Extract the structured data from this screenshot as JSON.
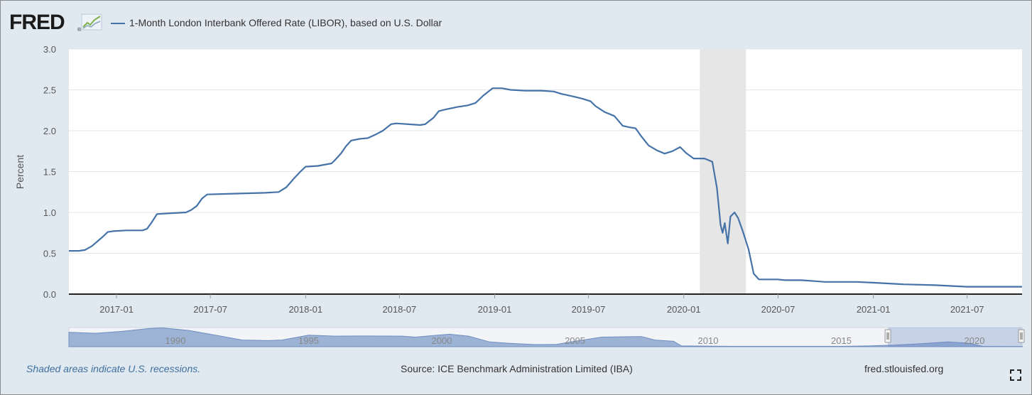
{
  "header": {
    "logo_text": "FRED",
    "legend_label": "1-Month London Interbank Offered Rate (LIBOR), based on U.S. Dollar"
  },
  "footer": {
    "note": "Shaded areas indicate U.S. recessions.",
    "source": "Source: ICE Benchmark Administration Limited (IBA)",
    "site": "fred.stlouisfed.org"
  },
  "colors": {
    "series": "#4572a7",
    "recession": "#e6e6e6",
    "background": "#e1e9f0",
    "plot": "#ffffff",
    "navigator_fill": "#9cb3d6"
  },
  "icons": [
    "fred-logo-graph-icon",
    "fullscreen-icon"
  ],
  "chart_data": {
    "type": "line",
    "title": "1-Month London Interbank Offered Rate (LIBOR), based on U.S. Dollar",
    "ylabel": "Percent",
    "xlabel": "",
    "ylim": [
      0,
      3
    ],
    "xlim": [
      "2016-10-01",
      "2021-10-15"
    ],
    "y_ticks": [
      "0.0",
      "0.5",
      "1.0",
      "1.5",
      "2.0",
      "2.5",
      "3.0"
    ],
    "x_ticks": [
      "2017-01",
      "2017-07",
      "2018-01",
      "2018-07",
      "2019-01",
      "2019-07",
      "2020-01",
      "2020-07",
      "2021-01",
      "2021-07"
    ],
    "grid": true,
    "legend_position": "top-left",
    "recessions": [
      {
        "start": "2020-02-01",
        "end": "2020-04-30"
      }
    ],
    "series": [
      {
        "name": "1-Month London Interbank Offered Rate (LIBOR), based on U.S. Dollar",
        "points": [
          [
            "2016-10-01",
            0.53
          ],
          [
            "2016-10-20",
            0.53
          ],
          [
            "2016-11-01",
            0.54
          ],
          [
            "2016-11-15",
            0.59
          ],
          [
            "2016-12-05",
            0.7
          ],
          [
            "2016-12-15",
            0.76
          ],
          [
            "2016-12-25",
            0.77
          ],
          [
            "2017-01-20",
            0.78
          ],
          [
            "2017-02-20",
            0.78
          ],
          [
            "2017-03-01",
            0.8
          ],
          [
            "2017-03-10",
            0.88
          ],
          [
            "2017-03-20",
            0.98
          ],
          [
            "2017-04-15",
            0.99
          ],
          [
            "2017-05-15",
            1.0
          ],
          [
            "2017-05-25",
            1.03
          ],
          [
            "2017-06-05",
            1.08
          ],
          [
            "2017-06-15",
            1.17
          ],
          [
            "2017-06-25",
            1.22
          ],
          [
            "2017-08-15",
            1.23
          ],
          [
            "2017-10-15",
            1.24
          ],
          [
            "2017-11-10",
            1.25
          ],
          [
            "2017-11-25",
            1.31
          ],
          [
            "2017-12-10",
            1.42
          ],
          [
            "2017-12-22",
            1.5
          ],
          [
            "2018-01-01",
            1.56
          ],
          [
            "2018-01-25",
            1.57
          ],
          [
            "2018-02-20",
            1.6
          ],
          [
            "2018-02-25",
            1.63
          ],
          [
            "2018-03-10",
            1.72
          ],
          [
            "2018-03-20",
            1.81
          ],
          [
            "2018-03-30",
            1.88
          ],
          [
            "2018-04-15",
            1.9
          ],
          [
            "2018-05-01",
            1.91
          ],
          [
            "2018-05-15",
            1.95
          ],
          [
            "2018-05-30",
            2.0
          ],
          [
            "2018-06-15",
            2.08
          ],
          [
            "2018-06-25",
            2.09
          ],
          [
            "2018-08-10",
            2.07
          ],
          [
            "2018-08-20",
            2.08
          ],
          [
            "2018-09-05",
            2.16
          ],
          [
            "2018-09-15",
            2.24
          ],
          [
            "2018-09-28",
            2.26
          ],
          [
            "2018-10-20",
            2.29
          ],
          [
            "2018-11-10",
            2.31
          ],
          [
            "2018-11-25",
            2.34
          ],
          [
            "2018-12-10",
            2.43
          ],
          [
            "2018-12-28",
            2.52
          ],
          [
            "2019-01-15",
            2.52
          ],
          [
            "2019-02-01",
            2.5
          ],
          [
            "2019-03-01",
            2.49
          ],
          [
            "2019-04-01",
            2.49
          ],
          [
            "2019-04-25",
            2.48
          ],
          [
            "2019-05-10",
            2.45
          ],
          [
            "2019-06-01",
            2.42
          ],
          [
            "2019-06-20",
            2.39
          ],
          [
            "2019-07-05",
            2.36
          ],
          [
            "2019-07-15",
            2.3
          ],
          [
            "2019-08-01",
            2.23
          ],
          [
            "2019-08-20",
            2.18
          ],
          [
            "2019-09-05",
            2.06
          ],
          [
            "2019-09-20",
            2.04
          ],
          [
            "2019-09-30",
            2.03
          ],
          [
            "2019-10-10",
            1.94
          ],
          [
            "2019-10-25",
            1.82
          ],
          [
            "2019-11-10",
            1.76
          ],
          [
            "2019-11-25",
            1.72
          ],
          [
            "2019-12-10",
            1.75
          ],
          [
            "2019-12-25",
            1.8
          ],
          [
            "2020-01-05",
            1.73
          ],
          [
            "2020-01-20",
            1.66
          ],
          [
            "2020-02-10",
            1.66
          ],
          [
            "2020-02-25",
            1.62
          ],
          [
            "2020-03-05",
            1.3
          ],
          [
            "2020-03-12",
            0.85
          ],
          [
            "2020-03-16",
            0.75
          ],
          [
            "2020-03-20",
            0.87
          ],
          [
            "2020-03-26",
            0.62
          ],
          [
            "2020-03-31",
            0.95
          ],
          [
            "2020-04-08",
            1.0
          ],
          [
            "2020-04-15",
            0.93
          ],
          [
            "2020-04-25",
            0.75
          ],
          [
            "2020-05-05",
            0.55
          ],
          [
            "2020-05-15",
            0.25
          ],
          [
            "2020-05-25",
            0.18
          ],
          [
            "2020-06-30",
            0.18
          ],
          [
            "2020-07-15",
            0.17
          ],
          [
            "2020-08-15",
            0.17
          ],
          [
            "2020-09-30",
            0.15
          ],
          [
            "2020-11-30",
            0.15
          ],
          [
            "2020-12-31",
            0.14
          ],
          [
            "2021-02-28",
            0.12
          ],
          [
            "2021-04-30",
            0.11
          ],
          [
            "2021-06-30",
            0.09
          ],
          [
            "2021-07-15",
            0.09
          ],
          [
            "2021-08-31",
            0.09
          ],
          [
            "2021-10-15",
            0.09
          ]
        ]
      }
    ],
    "navigator": {
      "range": [
        "1986-01-01",
        "2021-10-15"
      ],
      "ticks": [
        "1990",
        "1995",
        "2000",
        "2005",
        "2010",
        "2015",
        "2020"
      ],
      "selected": [
        "2016-10-01",
        "2021-10-15"
      ],
      "points": [
        [
          1986.0,
          7.5
        ],
        [
          1987.0,
          7.0
        ],
        [
          1988.0,
          8.0
        ],
        [
          1989.0,
          9.5
        ],
        [
          1989.5,
          9.8
        ],
        [
          1990.5,
          8.5
        ],
        [
          1991.5,
          6.0
        ],
        [
          1992.5,
          3.5
        ],
        [
          1993.5,
          3.2
        ],
        [
          1994.0,
          3.5
        ],
        [
          1995.0,
          6.0
        ],
        [
          1996.0,
          5.5
        ],
        [
          1997.0,
          5.6
        ],
        [
          1998.5,
          5.5
        ],
        [
          1999.0,
          5.0
        ],
        [
          2000.3,
          6.5
        ],
        [
          2001.0,
          5.5
        ],
        [
          2001.8,
          2.5
        ],
        [
          2002.5,
          1.8
        ],
        [
          2003.5,
          1.1
        ],
        [
          2004.3,
          1.2
        ],
        [
          2005.0,
          2.8
        ],
        [
          2006.0,
          5.0
        ],
        [
          2007.5,
          5.3
        ],
        [
          2008.0,
          3.5
        ],
        [
          2008.7,
          2.8
        ],
        [
          2009.0,
          0.4
        ],
        [
          2011.0,
          0.2
        ],
        [
          2015.0,
          0.2
        ],
        [
          2016.0,
          0.4
        ],
        [
          2017.0,
          0.8
        ],
        [
          2018.0,
          1.6
        ],
        [
          2019.0,
          2.5
        ],
        [
          2019.8,
          1.8
        ],
        [
          2020.3,
          0.2
        ],
        [
          2021.8,
          0.09
        ]
      ]
    }
  }
}
